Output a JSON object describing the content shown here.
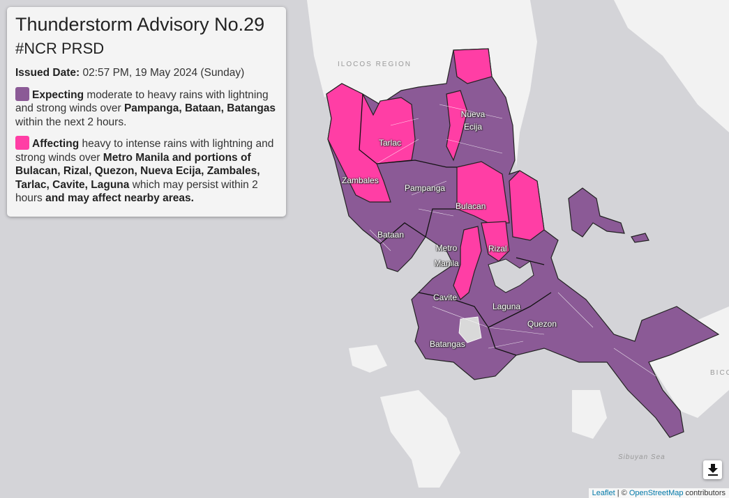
{
  "panel": {
    "title": "Thunderstorm Advisory No.29",
    "subtitle": "#NCR PRSD",
    "issued_label": "Issued Date:",
    "issued_value": "02:57 PM, 19 May 2024 (Sunday)",
    "expecting": {
      "color": "#8b5a96",
      "lead": "Expecting",
      "text1": " moderate to heavy rains with lightning and strong winds over ",
      "places": "Pampanga, Bataan, Batangas",
      "text2": " within the next 2 hours."
    },
    "affecting": {
      "color": "#ff3ea5",
      "lead": "Affecting",
      "text1": " heavy to intense rains with lightning and strong winds over ",
      "places": "Metro Manila and portions of Bulacan, Rizal, Quezon, Nueva Ecija, Zambales, Tarlac, Cavite, Laguna",
      "text2": " which may persist within 2 hours ",
      "text3": "and may affect nearby areas."
    }
  },
  "map": {
    "region_labels": {
      "ilocos": "ILOCOS REGION",
      "bicol": "BICO",
      "sibuyan": "Sibuyan Sea"
    },
    "provinces": {
      "nueva_ecija": "Nueva Ecija",
      "tarlac": "Tarlac",
      "zambales": "Zambales",
      "pampanga": "Pampanga",
      "bulacan": "Bulacan",
      "bataan": "Bataan",
      "metro_manila": "Metro Manila",
      "rizal": "Rizal",
      "cavite": "Cavite",
      "laguna": "Laguna",
      "quezon": "Quezon",
      "batangas": "Batangas"
    },
    "colors": {
      "water": "#d4d4d8",
      "land": "#f2f2f2",
      "expecting": "#8b5a96",
      "affecting": "#ff3ea5"
    }
  },
  "controls": {
    "download_icon": "download-icon"
  },
  "attribution": {
    "leaflet": "Leaflet",
    "sep": " | © ",
    "osm": "OpenStreetMap",
    "suffix": " contributors"
  }
}
